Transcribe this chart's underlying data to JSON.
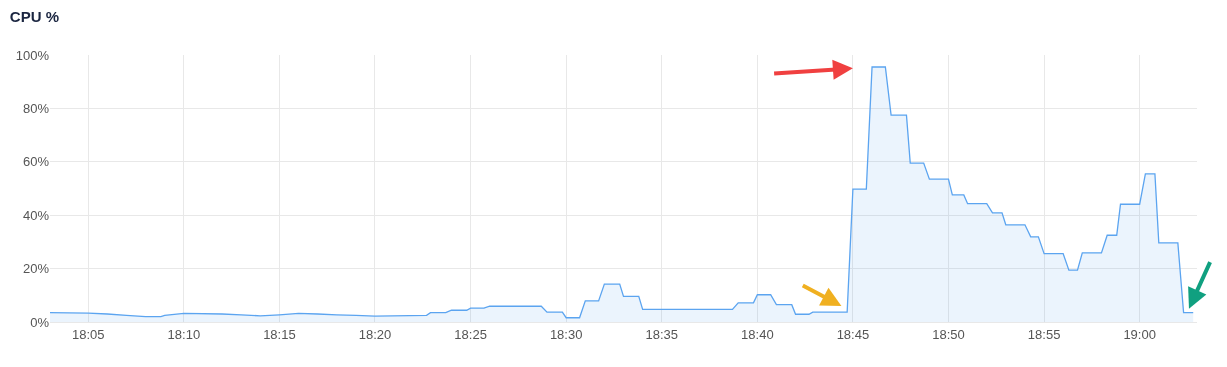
{
  "chart_data": {
    "type": "area",
    "title": "CPU %",
    "grid": true,
    "marker": "none",
    "xlim": [
      18.05,
      19.05
    ],
    "xticks": [
      {
        "value": 18.0833,
        "label": "18:05"
      },
      {
        "value": 18.1667,
        "label": "18:10"
      },
      {
        "value": 18.25,
        "label": "18:15"
      },
      {
        "value": 18.3333,
        "label": "18:20"
      },
      {
        "value": 18.4167,
        "label": "18:25"
      },
      {
        "value": 18.5,
        "label": "18:30"
      },
      {
        "value": 18.5833,
        "label": "18:35"
      },
      {
        "value": 18.6667,
        "label": "18:40"
      },
      {
        "value": 18.75,
        "label": "18:45"
      },
      {
        "value": 18.8333,
        "label": "18:50"
      },
      {
        "value": 18.9167,
        "label": "18:55"
      },
      {
        "value": 19.0,
        "label": "19:00"
      }
    ],
    "ylim": [
      0,
      100
    ],
    "yticks": [
      {
        "value": 0,
        "label": "0%"
      },
      {
        "value": 20,
        "label": "20%"
      },
      {
        "value": 40,
        "label": "40%"
      },
      {
        "value": 60,
        "label": "60%"
      },
      {
        "value": 80,
        "label": "80%"
      },
      {
        "value": 100,
        "label": "100%"
      }
    ],
    "x": [
      18.05,
      18.0833,
      18.1,
      18.1167,
      18.1333,
      18.1467,
      18.15,
      18.1667,
      18.2,
      18.2167,
      18.2333,
      18.25,
      18.2667,
      18.2833,
      18.3,
      18.3167,
      18.3333,
      18.3783,
      18.3817,
      18.395,
      18.4,
      18.4133,
      18.4167,
      18.4283,
      18.4333,
      18.4783,
      18.4833,
      18.4967,
      18.5,
      18.5117,
      18.5167,
      18.5283,
      18.5333,
      18.5467,
      18.55,
      18.5633,
      18.5667,
      18.645,
      18.65,
      18.6633,
      18.6667,
      18.6783,
      18.6833,
      18.6967,
      18.7,
      18.7117,
      18.715,
      18.745,
      18.75,
      18.7617,
      18.7667,
      18.7783,
      18.7833,
      18.7967,
      18.8,
      18.8117,
      18.8167,
      18.8333,
      18.8367,
      18.8467,
      18.85,
      18.8667,
      18.8717,
      18.88,
      18.8833,
      18.9,
      18.905,
      18.9117,
      18.9167,
      18.9333,
      18.9383,
      18.9458,
      18.95,
      18.9667,
      18.9717,
      18.98,
      18.9833,
      19.0,
      19.005,
      19.0133,
      19.0167,
      19.0333,
      19.0383,
      19.0467
    ],
    "series": [
      {
        "color": "#5ba4f0",
        "values": [
          3.5,
          3.3,
          3,
          2.5,
          2,
          2,
          2.5,
          3.2,
          3,
          2.7,
          2.3,
          2.7,
          3.2,
          3,
          2.7,
          2.5,
          2.2,
          2.5,
          3.5,
          3.5,
          4.4,
          4.4,
          5.2,
          5.2,
          5.9,
          5.9,
          3.7,
          3.7,
          1.6,
          1.6,
          7.9,
          7.9,
          14.2,
          14.2,
          9.6,
          9.6,
          4.7,
          4.7,
          7.2,
          7.2,
          10.2,
          10.2,
          6.5,
          6.5,
          2.9,
          2.9,
          3.7,
          3.7,
          49.8,
          49.8,
          95.5,
          95.5,
          77.5,
          77.5,
          59.5,
          59.5,
          53.5,
          53.5,
          47.6,
          47.6,
          44.3,
          44.3,
          40.9,
          40.9,
          36.4,
          36.4,
          31.9,
          31.9,
          25.6,
          25.6,
          19.4,
          19.4,
          25.9,
          25.9,
          32.5,
          32.5,
          44.1,
          44.1,
          55.5,
          55.5,
          29.6,
          29.6,
          3.5,
          3.5
        ]
      }
    ]
  }
}
